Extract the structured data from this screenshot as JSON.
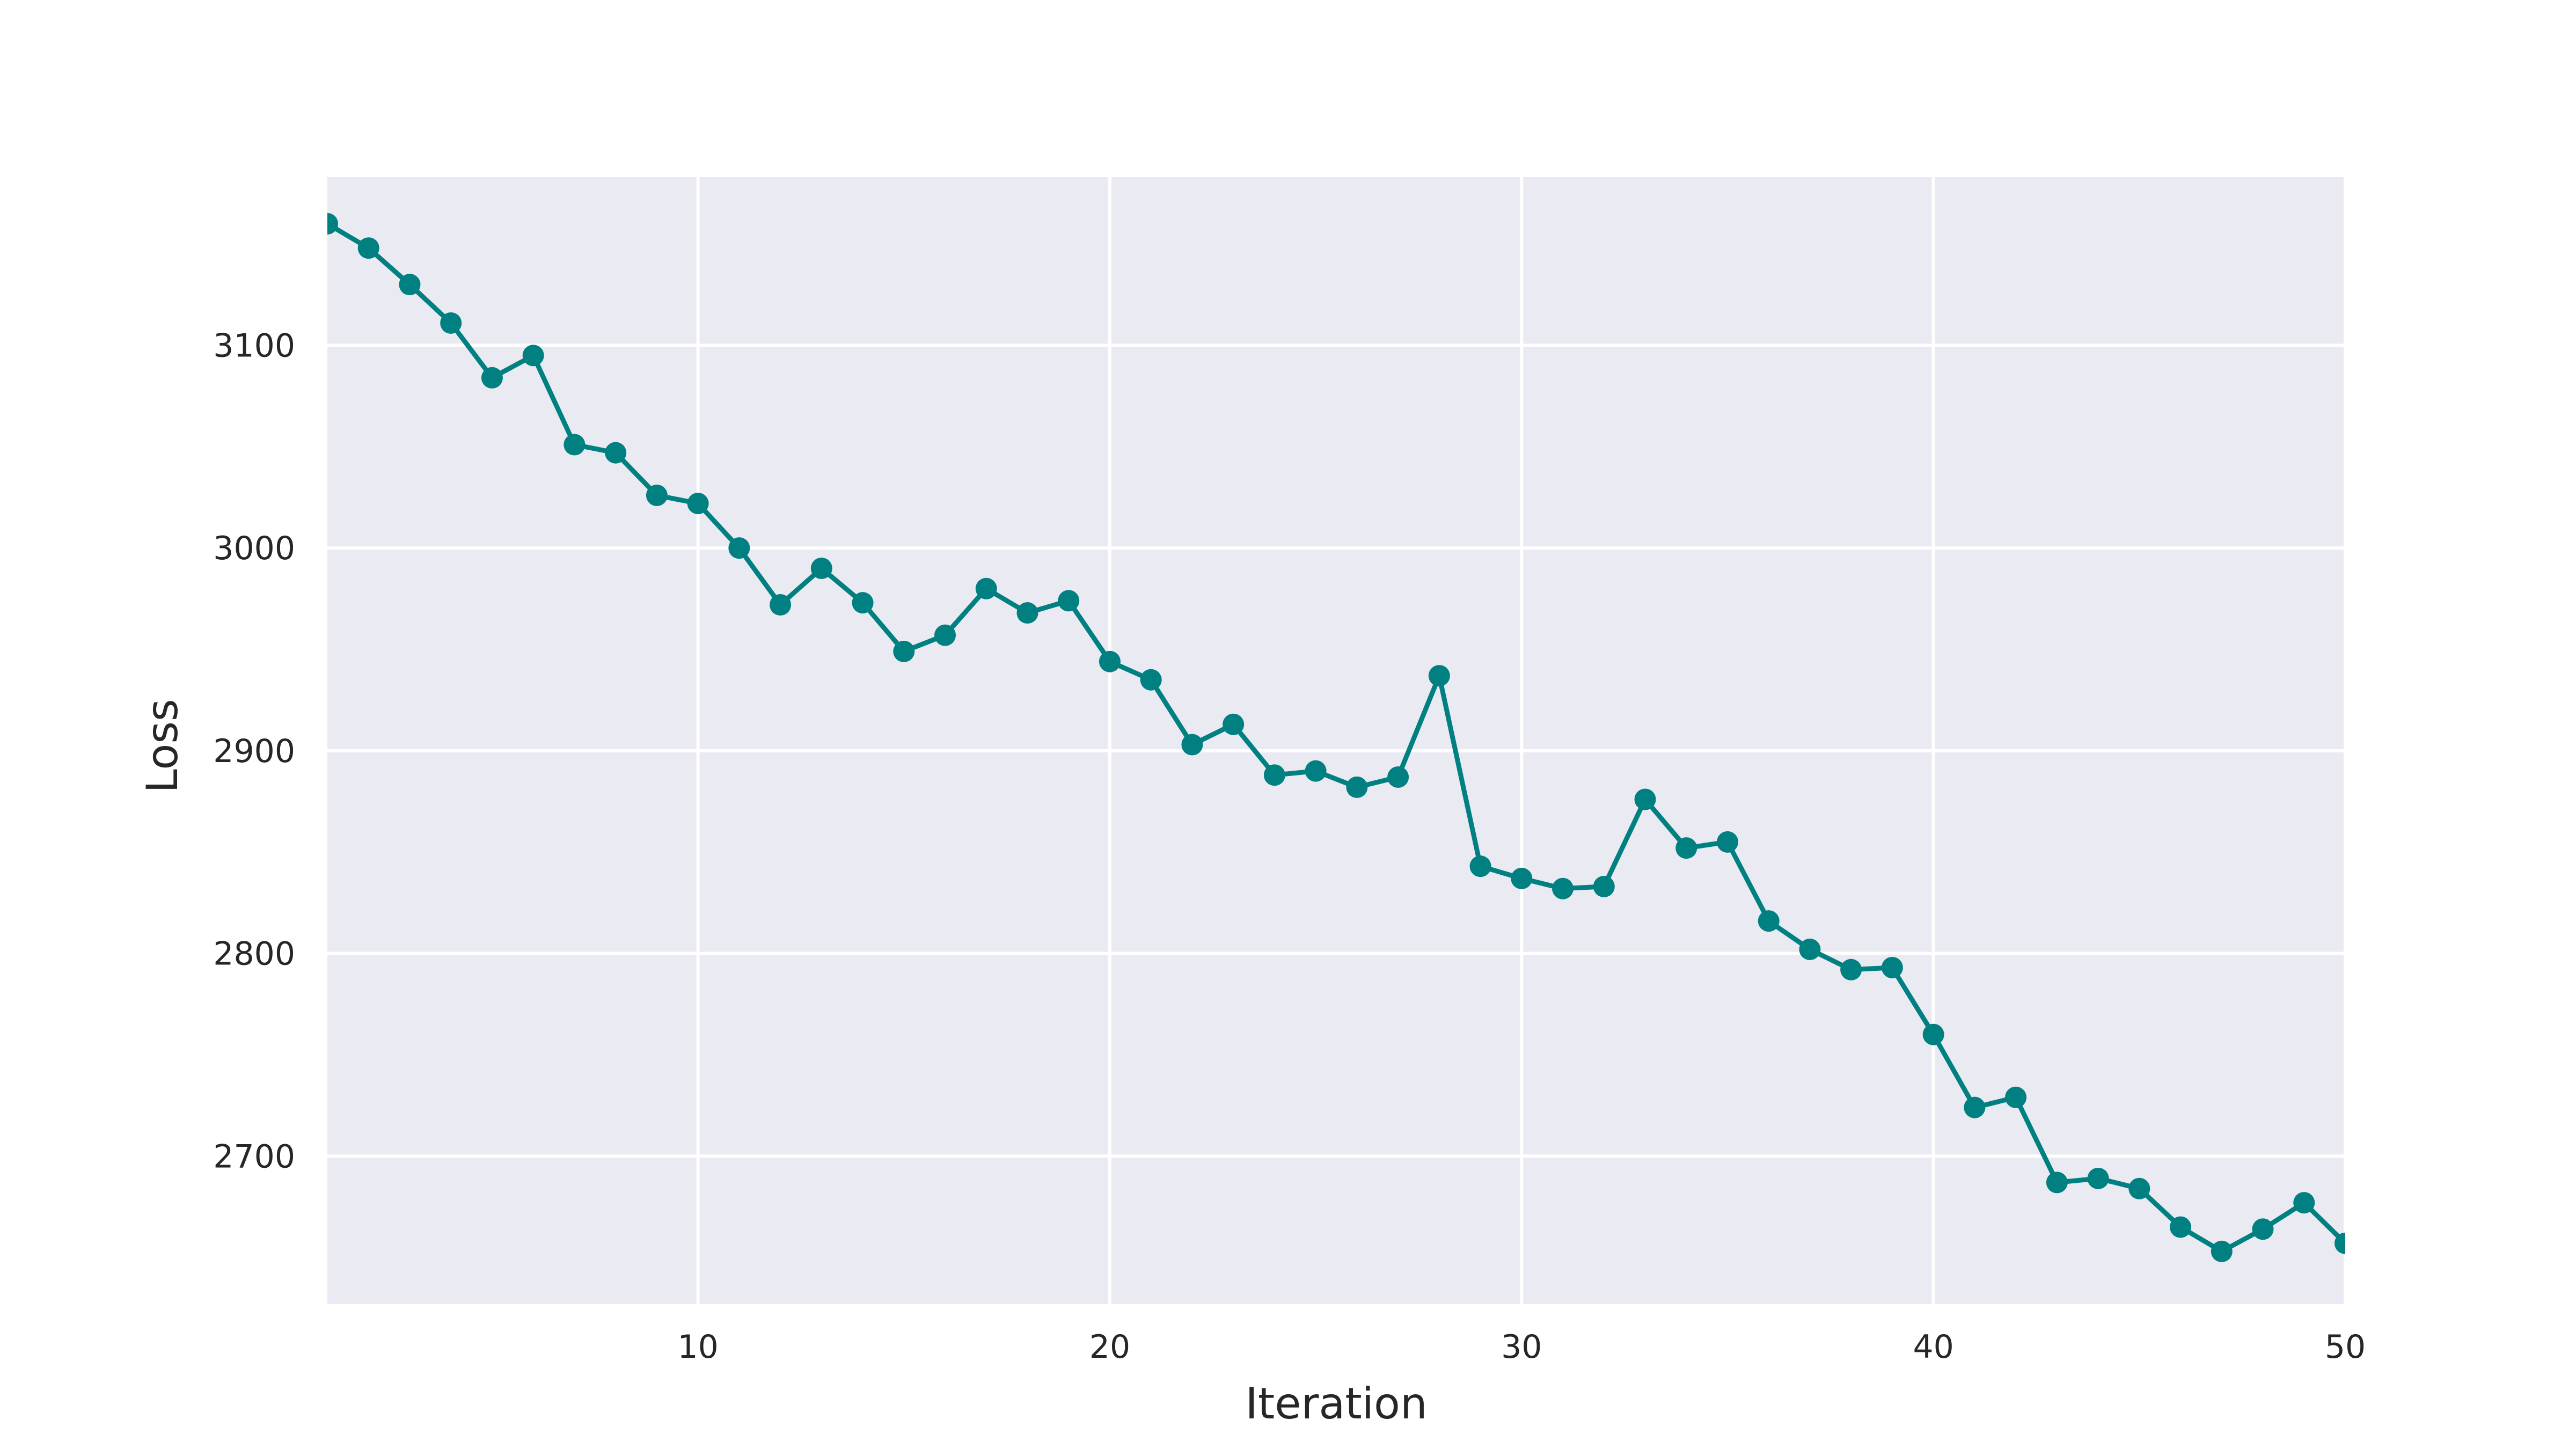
{
  "chart_data": {
    "type": "line",
    "title": "",
    "xlabel": "Iteration",
    "ylabel": "Loss",
    "xlim": [
      1,
      50
    ],
    "ylim": [
      2627,
      3183
    ],
    "x_ticks": [
      10,
      20,
      30,
      40,
      50
    ],
    "y_ticks": [
      2700,
      2800,
      2900,
      3000,
      3100
    ],
    "grid": true,
    "legend": "none",
    "colors": {
      "plot_background": "#EAEAF2",
      "grid": "#FFFFFF",
      "line": "#008080",
      "text": "#262626"
    },
    "series": [
      {
        "x": [
          1,
          2,
          3,
          4,
          5,
          6,
          7,
          8,
          9,
          10,
          11,
          12,
          13,
          14,
          15,
          16,
          17,
          18,
          19,
          20,
          21,
          22,
          23,
          24,
          25,
          26,
          27,
          28,
          29,
          30,
          31,
          32,
          33,
          34,
          35,
          36,
          37,
          38,
          39,
          40,
          41,
          42,
          43,
          44,
          45,
          46,
          47,
          48,
          49,
          50
        ],
        "values": [
          3160,
          3148,
          3130,
          3111,
          3084,
          3095,
          3051,
          3047,
          3026,
          3022,
          3000,
          2972,
          2990,
          2973,
          2949,
          2957,
          2980,
          2968,
          2974,
          2944,
          2935,
          2903,
          2913,
          2888,
          2890,
          2882,
          2887,
          2937,
          2843,
          2837,
          2832,
          2833,
          2876,
          2852,
          2855,
          2816,
          2802,
          2792,
          2793,
          2760,
          2724,
          2729,
          2687,
          2689,
          2684,
          2665,
          2653,
          2664,
          2677,
          2657
        ]
      }
    ]
  }
}
